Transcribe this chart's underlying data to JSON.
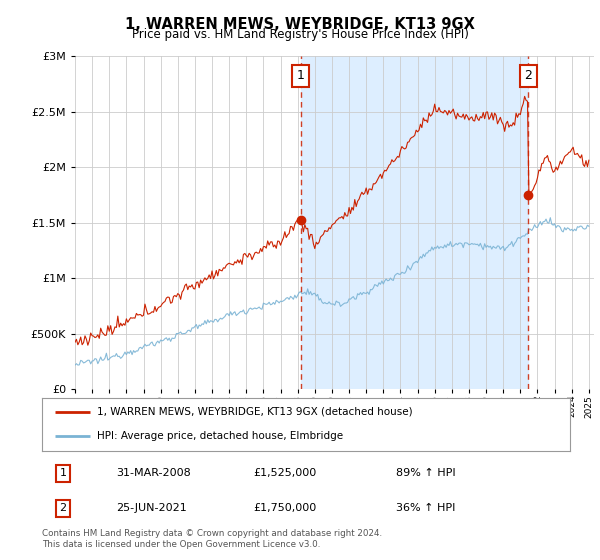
{
  "title": "1, WARREN MEWS, WEYBRIDGE, KT13 9GX",
  "subtitle": "Price paid vs. HM Land Registry's House Price Index (HPI)",
  "legend_line1": "1, WARREN MEWS, WEYBRIDGE, KT13 9GX (detached house)",
  "legend_line2": "HPI: Average price, detached house, Elmbridge",
  "transaction1_date": "31-MAR-2008",
  "transaction1_price": "£1,525,000",
  "transaction1_hpi": "89% ↑ HPI",
  "transaction2_date": "25-JUN-2021",
  "transaction2_price": "£1,750,000",
  "transaction2_hpi": "36% ↑ HPI",
  "footer": "Contains HM Land Registry data © Crown copyright and database right 2024.\nThis data is licensed under the Open Government Licence v3.0.",
  "hpi_line_color": "#7ab3d4",
  "price_line_color": "#cc2200",
  "dashed_line_color": "#cc2200",
  "shade_color": "#ddeeff",
  "background_color": "#ffffff",
  "plot_bg_color": "#ffffff",
  "ylim": [
    0,
    3000000
  ],
  "yticks": [
    0,
    500000,
    1000000,
    1500000,
    2000000,
    2500000,
    3000000
  ],
  "year_start": 1995,
  "year_end": 2025,
  "transaction1_year": 2008.17,
  "transaction2_year": 2021.47,
  "transaction1_price_val": 1525000,
  "transaction2_price_val": 1750000
}
